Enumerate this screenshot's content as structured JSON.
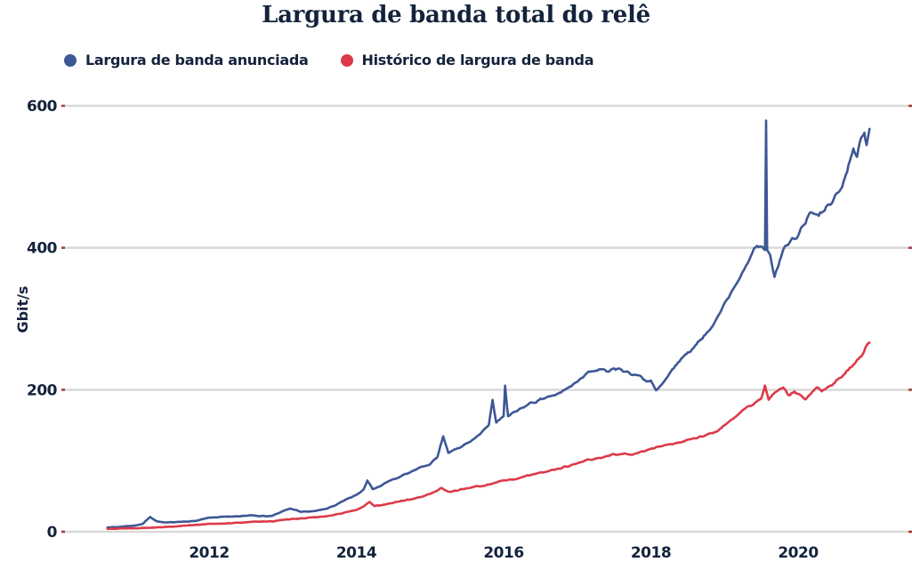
{
  "title": "Largura de banda total do relê",
  "legend": [
    {
      "label": "Largura de banda anunciada",
      "color": "#3D5795"
    },
    {
      "label": "Histórico de largura de banda",
      "color": "#DC3A49"
    }
  ],
  "style": {
    "text_color": "#14233C",
    "grid_color": "#D9D9D9",
    "tick_color": "#A23B35",
    "background": "#FFFFFF",
    "advertised_color": "#3D5795",
    "history_color": "#DC3A49"
  },
  "chart_data": {
    "type": "line",
    "title": "Largura de banda total do relê",
    "xlabel": "",
    "ylabel": "Gbit/s",
    "unit": "Gbit/s",
    "x_range": [
      2010.6,
      2021.0
    ],
    "ylim": [
      0,
      620
    ],
    "x_ticks": [
      2012,
      2014,
      2016,
      2018,
      2020
    ],
    "y_ticks": [
      0,
      200,
      400,
      600
    ],
    "grid": "horizontal",
    "legend_position": "top-left",
    "series": [
      {
        "name": "Largura de banda anunciada",
        "id": "advertised-bandwidth",
        "color": "#3D5795",
        "points": [
          [
            2010.62,
            6
          ],
          [
            2010.8,
            7
          ],
          [
            2011.0,
            9
          ],
          [
            2011.1,
            11
          ],
          [
            2011.2,
            21
          ],
          [
            2011.28,
            15
          ],
          [
            2011.4,
            13
          ],
          [
            2011.6,
            14
          ],
          [
            2011.8,
            15
          ],
          [
            2012.0,
            20
          ],
          [
            2012.2,
            21
          ],
          [
            2012.4,
            22
          ],
          [
            2012.55,
            23
          ],
          [
            2012.7,
            22
          ],
          [
            2012.85,
            22
          ],
          [
            2013.0,
            29
          ],
          [
            2013.1,
            33
          ],
          [
            2013.25,
            28
          ],
          [
            2013.4,
            29
          ],
          [
            2013.55,
            31
          ],
          [
            2013.7,
            37
          ],
          [
            2013.85,
            45
          ],
          [
            2014.0,
            52
          ],
          [
            2014.1,
            60
          ],
          [
            2014.15,
            72
          ],
          [
            2014.22,
            60
          ],
          [
            2014.35,
            66
          ],
          [
            2014.5,
            74
          ],
          [
            2014.65,
            80
          ],
          [
            2014.8,
            87
          ],
          [
            2015.0,
            96
          ],
          [
            2015.1,
            105
          ],
          [
            2015.18,
            135
          ],
          [
            2015.25,
            112
          ],
          [
            2015.4,
            118
          ],
          [
            2015.55,
            128
          ],
          [
            2015.7,
            140
          ],
          [
            2015.8,
            150
          ],
          [
            2015.85,
            185
          ],
          [
            2015.9,
            155
          ],
          [
            2016.0,
            162
          ],
          [
            2016.02,
            205
          ],
          [
            2016.06,
            162
          ],
          [
            2016.2,
            172
          ],
          [
            2016.35,
            180
          ],
          [
            2016.5,
            187
          ],
          [
            2016.65,
            190
          ],
          [
            2016.8,
            198
          ],
          [
            2016.9,
            205
          ],
          [
            2017.0,
            212
          ],
          [
            2017.1,
            222
          ],
          [
            2017.25,
            228
          ],
          [
            2017.4,
            227
          ],
          [
            2017.5,
            231
          ],
          [
            2017.6,
            229
          ],
          [
            2017.7,
            225
          ],
          [
            2017.8,
            222
          ],
          [
            2017.9,
            216
          ],
          [
            2018.0,
            212
          ],
          [
            2018.07,
            199
          ],
          [
            2018.15,
            207
          ],
          [
            2018.25,
            222
          ],
          [
            2018.35,
            237
          ],
          [
            2018.5,
            252
          ],
          [
            2018.6,
            262
          ],
          [
            2018.7,
            272
          ],
          [
            2018.8,
            287
          ],
          [
            2018.9,
            302
          ],
          [
            2019.0,
            320
          ],
          [
            2019.1,
            340
          ],
          [
            2019.2,
            357
          ],
          [
            2019.3,
            380
          ],
          [
            2019.4,
            398
          ],
          [
            2019.5,
            402
          ],
          [
            2019.55,
            395
          ],
          [
            2019.565,
            580
          ],
          [
            2019.58,
            398
          ],
          [
            2019.62,
            390
          ],
          [
            2019.68,
            358
          ],
          [
            2019.75,
            385
          ],
          [
            2019.8,
            398
          ],
          [
            2019.9,
            408
          ],
          [
            2020.0,
            418
          ],
          [
            2020.1,
            437
          ],
          [
            2020.18,
            451
          ],
          [
            2020.28,
            444
          ],
          [
            2020.38,
            457
          ],
          [
            2020.5,
            471
          ],
          [
            2020.6,
            487
          ],
          [
            2020.65,
            505
          ],
          [
            2020.7,
            522
          ],
          [
            2020.75,
            543
          ],
          [
            2020.8,
            528
          ],
          [
            2020.85,
            556
          ],
          [
            2020.9,
            568
          ],
          [
            2020.93,
            547
          ],
          [
            2020.97,
            562
          ]
        ]
      },
      {
        "name": "Histórico de largura de banda",
        "id": "bandwidth-history",
        "color": "#DC3A49",
        "points": [
          [
            2010.62,
            4
          ],
          [
            2011.0,
            5
          ],
          [
            2011.3,
            6
          ],
          [
            2011.6,
            8
          ],
          [
            2012.0,
            11
          ],
          [
            2012.3,
            12
          ],
          [
            2012.6,
            14
          ],
          [
            2012.9,
            15
          ],
          [
            2013.0,
            17
          ],
          [
            2013.3,
            19
          ],
          [
            2013.6,
            22
          ],
          [
            2013.8,
            26
          ],
          [
            2014.0,
            31
          ],
          [
            2014.1,
            36
          ],
          [
            2014.18,
            42
          ],
          [
            2014.25,
            36
          ],
          [
            2014.4,
            39
          ],
          [
            2014.55,
            42
          ],
          [
            2014.7,
            45
          ],
          [
            2014.85,
            48
          ],
          [
            2015.0,
            53
          ],
          [
            2015.15,
            62
          ],
          [
            2015.25,
            56
          ],
          [
            2015.4,
            59
          ],
          [
            2015.55,
            62
          ],
          [
            2015.7,
            65
          ],
          [
            2015.85,
            68
          ],
          [
            2016.0,
            73
          ],
          [
            2016.15,
            74
          ],
          [
            2016.3,
            78
          ],
          [
            2016.45,
            82
          ],
          [
            2016.6,
            85
          ],
          [
            2016.75,
            89
          ],
          [
            2016.9,
            93
          ],
          [
            2017.0,
            96
          ],
          [
            2017.15,
            101
          ],
          [
            2017.3,
            104
          ],
          [
            2017.45,
            108
          ],
          [
            2017.6,
            110
          ],
          [
            2017.75,
            109
          ],
          [
            2017.9,
            113
          ],
          [
            2018.0,
            117
          ],
          [
            2018.15,
            121
          ],
          [
            2018.3,
            124
          ],
          [
            2018.45,
            128
          ],
          [
            2018.6,
            131
          ],
          [
            2018.75,
            136
          ],
          [
            2018.9,
            142
          ],
          [
            2019.0,
            150
          ],
          [
            2019.1,
            158
          ],
          [
            2019.2,
            167
          ],
          [
            2019.3,
            175
          ],
          [
            2019.4,
            180
          ],
          [
            2019.5,
            188
          ],
          [
            2019.55,
            207
          ],
          [
            2019.6,
            186
          ],
          [
            2019.65,
            192
          ],
          [
            2019.72,
            198
          ],
          [
            2019.8,
            202
          ],
          [
            2019.87,
            192
          ],
          [
            2019.95,
            197
          ],
          [
            2020.02,
            192
          ],
          [
            2020.1,
            186
          ],
          [
            2020.18,
            196
          ],
          [
            2020.25,
            204
          ],
          [
            2020.32,
            199
          ],
          [
            2020.4,
            203
          ],
          [
            2020.5,
            211
          ],
          [
            2020.6,
            220
          ],
          [
            2020.7,
            230
          ],
          [
            2020.8,
            241
          ],
          [
            2020.88,
            252
          ],
          [
            2020.93,
            262
          ],
          [
            2020.97,
            266
          ]
        ]
      }
    ]
  }
}
